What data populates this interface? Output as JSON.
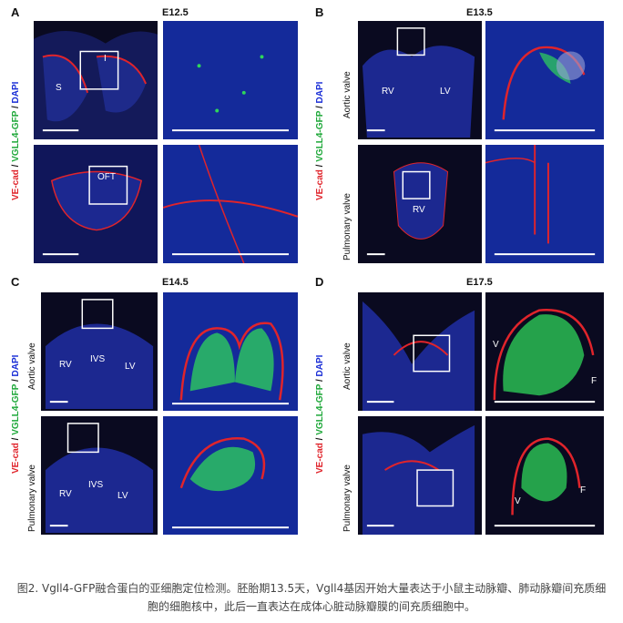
{
  "panels": {
    "A": {
      "letter": "A",
      "stage": "E12.5",
      "ylabel": {
        "red": "VE-cad",
        "green": "VGLL4-GFP",
        "blue": "DAPI",
        "sep": " / "
      },
      "labels": {
        "S": "S",
        "I": "I",
        "OFT": "OFT"
      }
    },
    "B": {
      "letter": "B",
      "stage": "E13.5",
      "ylabel": {
        "red": "VE-cad",
        "green": "VGLL4-GFP",
        "blue": "DAPI",
        "sep": " / "
      },
      "rows": [
        "Aortic valve",
        "Pulmonary valve"
      ],
      "labels": {
        "RV": "RV",
        "LV": "LV",
        "RV2": "RV"
      }
    },
    "C": {
      "letter": "C",
      "stage": "E14.5",
      "ylabel": {
        "red": "VE-cad",
        "green": "VGLL4-GFP",
        "blue": "DAPI",
        "sep": " / "
      },
      "rows": [
        "Aortic valve",
        "Pulmonary valve"
      ],
      "labels": {
        "RV": "RV",
        "IVS": "IVS",
        "LV": "LV",
        "RV2": "RV",
        "IVS2": "IVS",
        "LV2": "LV"
      }
    },
    "D": {
      "letter": "D",
      "stage": "E17.5",
      "ylabel": {
        "red": "VE-cad",
        "green": "VGLL4-GFP",
        "blue": "DAPI",
        "sep": " / "
      },
      "rows": [
        "Aortic valve",
        "Pulmonary valve"
      ],
      "labels": {
        "V": "V",
        "F": "F",
        "V2": "V",
        "F2": "F"
      }
    }
  },
  "caption": {
    "line1": "图2. Vgll4-GFP融合蛋白的亚细胞定位检测。胚胎期13.5天，Vgll4基因开始大量表达于小鼠主动脉瓣、肺动脉瓣间充质细",
    "line2": "胞的细胞核中，此后一直表达在成体心脏动脉瓣膜的间充质细胞中。"
  },
  "colors": {
    "red": "#e0242b",
    "green": "#1fa83a",
    "blue": "#1b2fd6",
    "tissue_blue": "#1a2a9a"
  }
}
